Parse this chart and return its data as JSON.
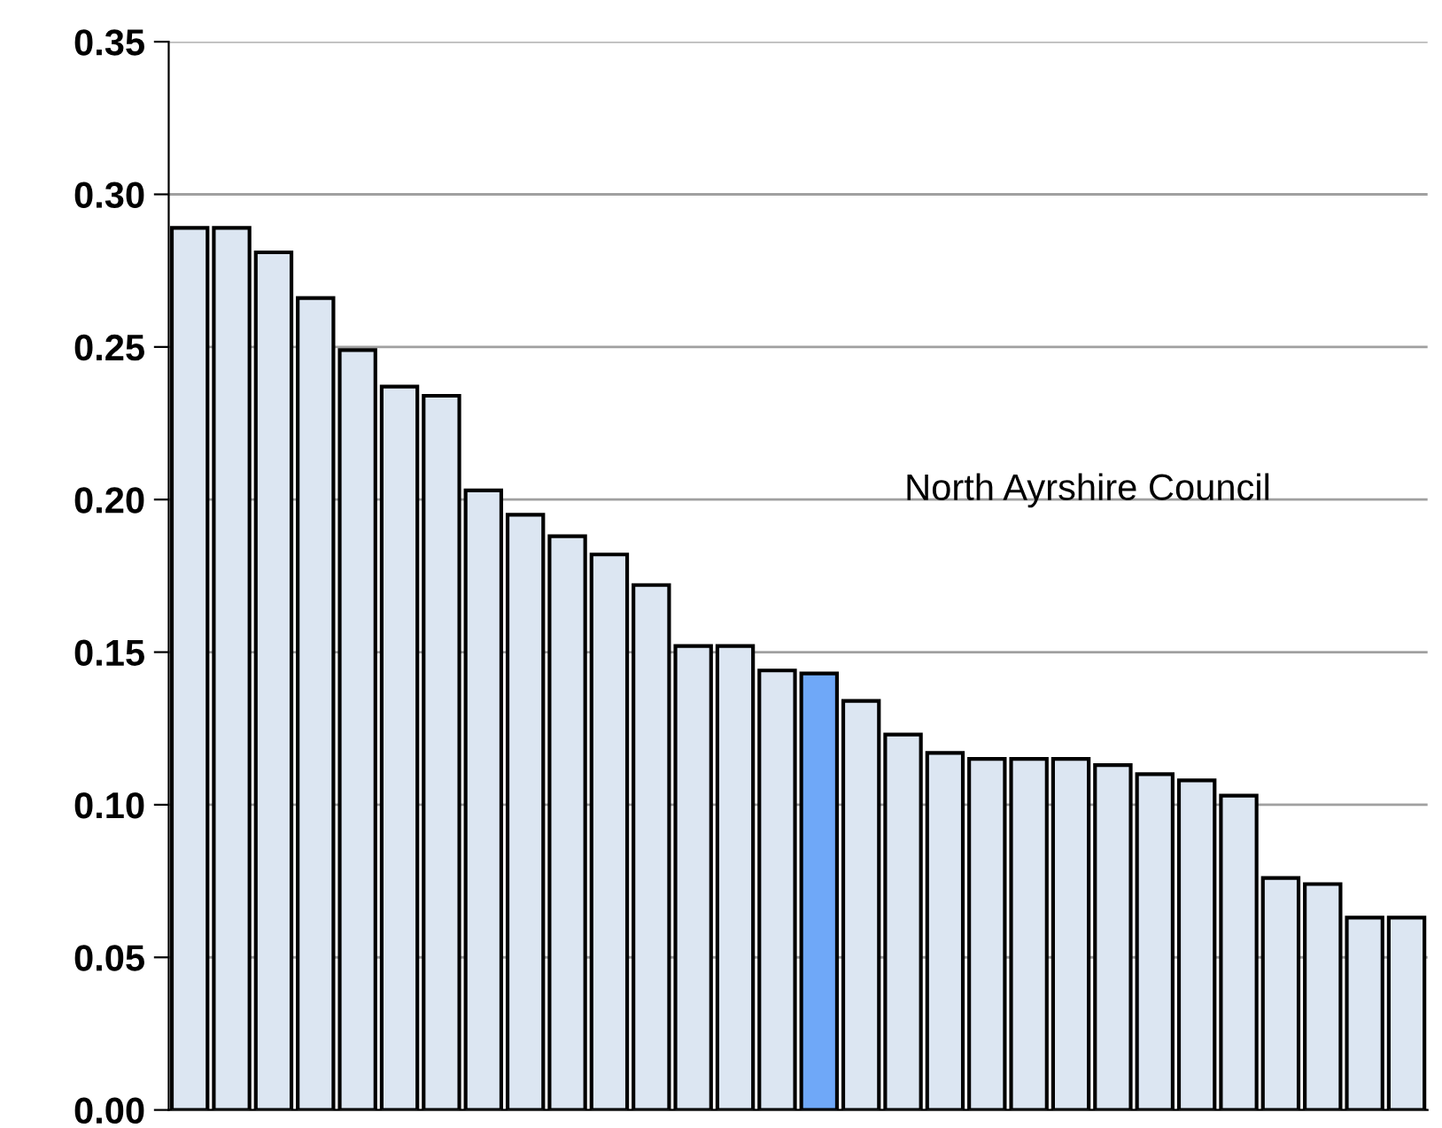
{
  "chart_data": {
    "type": "bar",
    "categories": [
      null,
      null,
      null,
      null,
      null,
      null,
      null,
      null,
      null,
      null,
      null,
      null,
      null,
      null,
      null,
      null,
      null,
      null,
      null,
      null,
      null,
      null,
      null,
      null,
      null,
      null,
      null,
      null,
      null,
      null
    ],
    "values": [
      0.289,
      0.289,
      0.281,
      0.266,
      0.249,
      0.237,
      0.234,
      0.203,
      0.195,
      0.188,
      0.182,
      0.172,
      0.152,
      0.152,
      0.144,
      0.143,
      0.134,
      0.123,
      0.117,
      0.115,
      0.115,
      0.115,
      0.113,
      0.11,
      0.108,
      0.103,
      0.076,
      0.074,
      0.063,
      0.063
    ],
    "colors": [
      "#dce6f2",
      "#dce6f2",
      "#dce6f2",
      "#dce6f2",
      "#dce6f2",
      "#dce6f2",
      "#dce6f2",
      "#dce6f2",
      "#dce6f2",
      "#dce6f2",
      "#dce6f2",
      "#dce6f2",
      "#dce6f2",
      "#dce6f2",
      "#dce6f2",
      "#6fa8f8",
      "#dce6f2",
      "#dce6f2",
      "#dce6f2",
      "#dce6f2",
      "#dce6f2",
      "#dce6f2",
      "#dce6f2",
      "#dce6f2",
      "#dce6f2",
      "#dce6f2",
      "#dce6f2",
      "#dce6f2",
      "#dce6f2",
      "#dce6f2"
    ],
    "ylim": [
      0,
      0.35
    ],
    "yticks": [
      {
        "value": 0,
        "label": "0.00"
      },
      {
        "value": 0.05,
        "label": "0.05"
      },
      {
        "value": 0.1,
        "label": "0.10"
      },
      {
        "value": 0.15,
        "label": "0.15"
      },
      {
        "value": 0.2,
        "label": "0.20"
      },
      {
        "value": 0.25,
        "label": "0.25"
      },
      {
        "value": 0.3,
        "label": "0.30"
      },
      {
        "value": 0.35,
        "label": "0.35"
      }
    ],
    "grid": "y",
    "tick_labels": "y",
    "annotations": [
      "North Ayrshire Council"
    ]
  }
}
